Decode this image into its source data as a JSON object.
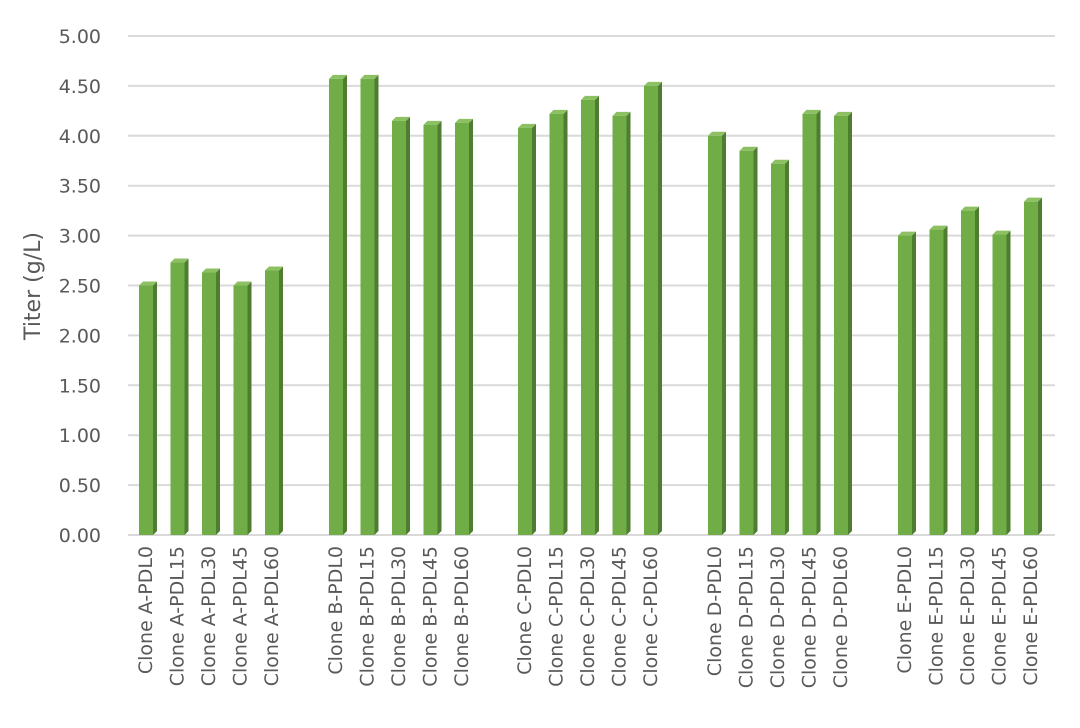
{
  "chart_data": {
    "type": "bar",
    "style": "3d-column",
    "title": "",
    "xlabel": "",
    "ylabel": "Titer (g/L)",
    "ylim": [
      0,
      5
    ],
    "yticks": [
      "0.00",
      "0.50",
      "1.00",
      "1.50",
      "2.00",
      "2.50",
      "3.00",
      "3.50",
      "4.00",
      "4.50",
      "5.00"
    ],
    "grid": true,
    "legend": "none",
    "bar_color": "#70ad47",
    "bar_side_color": "#4e7d31",
    "bar_top_color": "#8cc063",
    "groups": [
      {
        "categories": [
          "Clone A-PDL0",
          "Clone A-PDL15",
          "Clone A-PDL30",
          "Clone A-PDL45",
          "Clone A-PDL60"
        ],
        "values": [
          2.5,
          2.73,
          2.63,
          2.5,
          2.65
        ]
      },
      {
        "categories": [
          "Clone B-PDL0",
          "Clone B-PDL15",
          "Clone B-PDL30",
          "Clone B-PDL45",
          "Clone B-PDL60"
        ],
        "values": [
          4.57,
          4.57,
          4.15,
          4.11,
          4.13
        ]
      },
      {
        "categories": [
          "Clone C-PDL0",
          "Clone C-PDL15",
          "Clone C-PDL30",
          "Clone C-PDL45",
          "Clone C-PDL60"
        ],
        "values": [
          4.08,
          4.22,
          4.36,
          4.2,
          4.5
        ]
      },
      {
        "categories": [
          "Clone D-PDL0",
          "Clone D-PDL15",
          "Clone D-PDL30",
          "Clone D-PDL45",
          "Clone D-PDL60"
        ],
        "values": [
          4.0,
          3.85,
          3.72,
          4.22,
          4.2
        ]
      },
      {
        "categories": [
          "Clone E-PDL0",
          "Clone E-PDL15",
          "Clone E-PDL30",
          "Clone E-PDL45",
          "Clone E-PDL60"
        ],
        "values": [
          3.0,
          3.06,
          3.25,
          3.01,
          3.34
        ]
      }
    ]
  }
}
